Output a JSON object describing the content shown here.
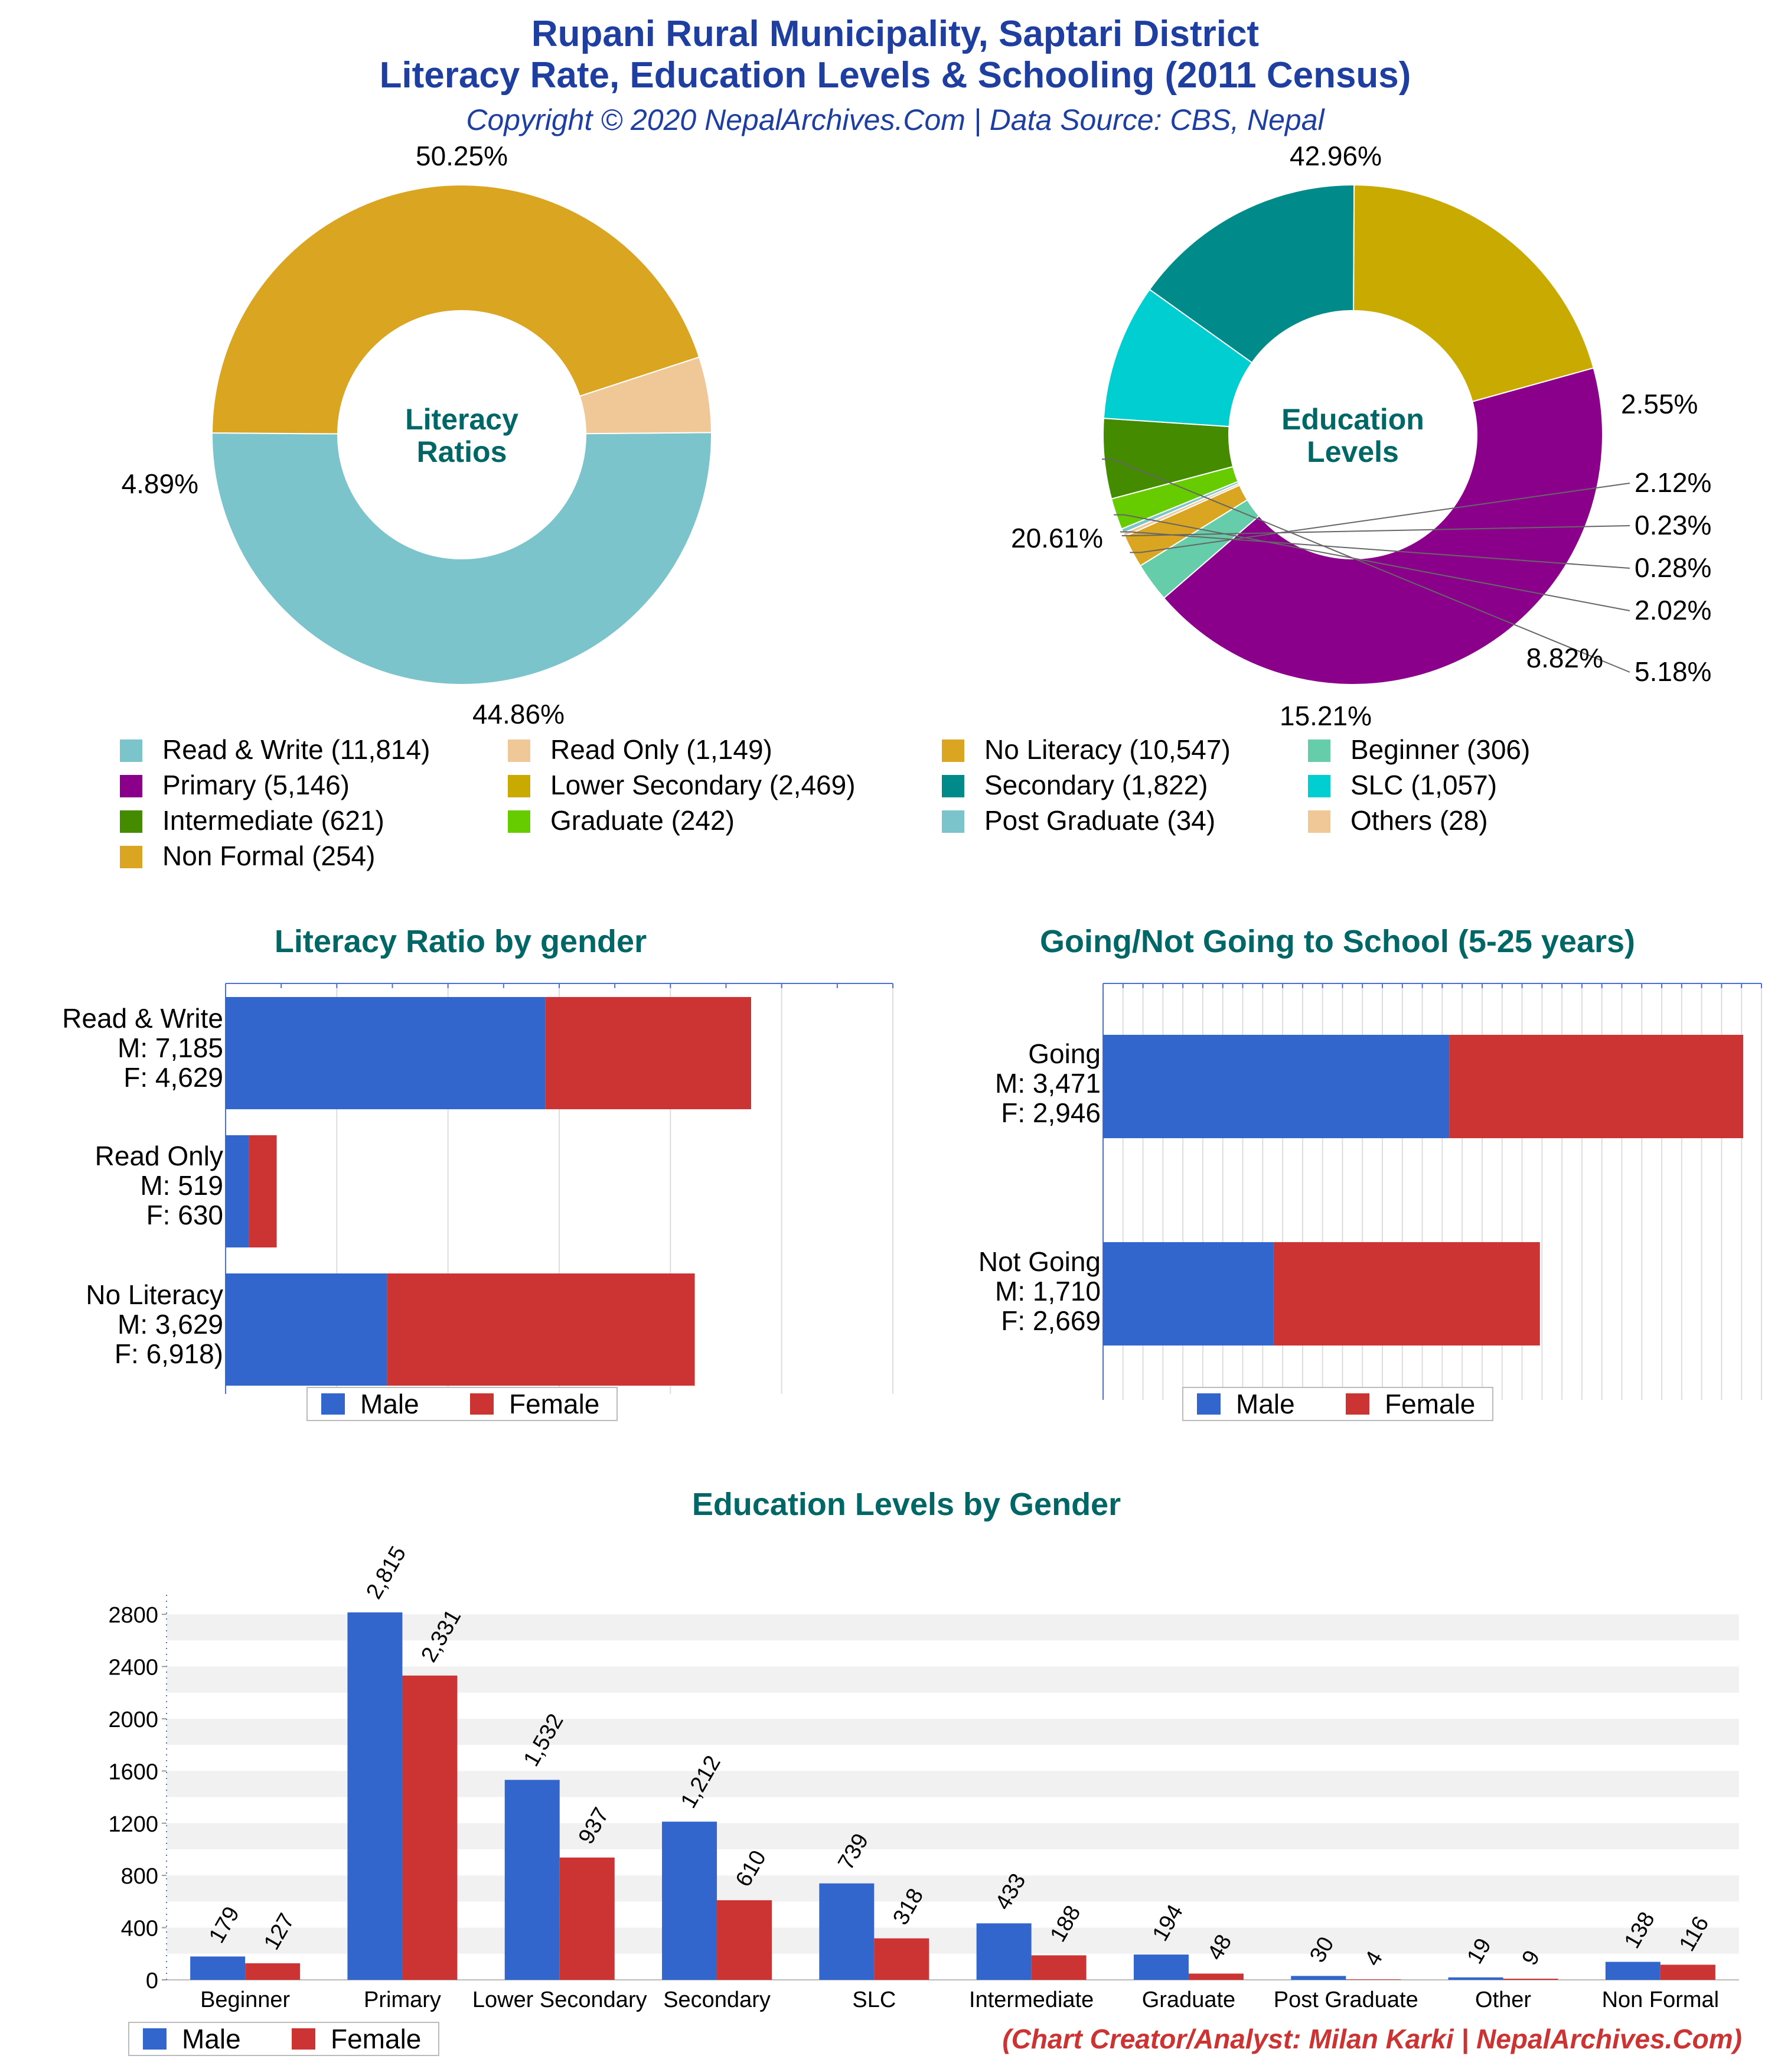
{
  "header": {
    "title_line1": "Rupani Rural Municipality, Saptari District",
    "title_line2": "Literacy Rate, Education Levels & Schooling (2011 Census)",
    "subtitle": "Copyright © 2020 NepalArchives.Com | Data Source: CBS, Nepal"
  },
  "colors": {
    "title": "#1f3fa0",
    "section_title": "#006666",
    "male": "#3366cc",
    "female": "#cc3333",
    "credit": "#cc3333"
  },
  "legend": {
    "male": "Male",
    "female": "Female",
    "items": [
      {
        "label": "Read & Write (11,814)",
        "color": "#7cc4cc"
      },
      {
        "label": "Read Only (1,149)",
        "color": "#f0c898"
      },
      {
        "label": "No Literacy (10,547)",
        "color": "#daa520"
      },
      {
        "label": "Beginner (306)",
        "color": "#66cdaa"
      },
      {
        "label": "Primary (5,146)",
        "color": "#8b008b"
      },
      {
        "label": "Lower Secondary (2,469)",
        "color": "#c8aa00"
      },
      {
        "label": "Secondary (1,822)",
        "color": "#008b8b"
      },
      {
        "label": "SLC (1,057)",
        "color": "#00ced1"
      },
      {
        "label": "Intermediate (621)",
        "color": "#458b00"
      },
      {
        "label": "Graduate (242)",
        "color": "#66cc00"
      },
      {
        "label": "Post Graduate (34)",
        "color": "#7cc4cc"
      },
      {
        "label": "Others (28)",
        "color": "#f0c898"
      },
      {
        "label": "Non Formal (254)",
        "color": "#daa520"
      }
    ]
  },
  "credit": "(Chart Creator/Analyst: Milan Karki | NepalArchives.Com)",
  "chart_data": [
    {
      "type": "pie",
      "center_label": [
        "Literacy",
        "Ratios"
      ],
      "slices": [
        {
          "name": "Read & Write",
          "value": 11814,
          "label": "50.25%",
          "color": "#7cc4cc"
        },
        {
          "name": "No Literacy",
          "value": 10547,
          "label": "44.86%",
          "color": "#daa520"
        },
        {
          "name": "Read Only",
          "value": 1149,
          "label": "4.89%",
          "color": "#f0c898"
        }
      ]
    },
    {
      "type": "pie",
      "center_label": [
        "Education",
        "Levels"
      ],
      "slices": [
        {
          "name": "Primary",
          "value": 5146,
          "label": "42.96%",
          "color": "#8b008b"
        },
        {
          "name": "Beginner",
          "value": 306,
          "label": "2.55%",
          "color": "#66cdaa"
        },
        {
          "name": "Non Formal",
          "value": 254,
          "label": "2.12%",
          "color": "#daa520"
        },
        {
          "name": "Others",
          "value": 28,
          "label": "0.23%",
          "color": "#f0c898"
        },
        {
          "name": "Post Graduate",
          "value": 34,
          "label": "0.28%",
          "color": "#7cc4cc"
        },
        {
          "name": "Graduate",
          "value": 242,
          "label": "2.02%",
          "color": "#66cc00"
        },
        {
          "name": "Intermediate",
          "value": 621,
          "label": "5.18%",
          "color": "#458b00"
        },
        {
          "name": "SLC",
          "value": 1057,
          "label": "8.82%",
          "color": "#00ced1"
        },
        {
          "name": "Secondary",
          "value": 1822,
          "label": "15.21%",
          "color": "#008b8b"
        },
        {
          "name": "Lower Secondary",
          "value": 2469,
          "label": "20.61%",
          "color": "#c8aa00"
        }
      ]
    },
    {
      "type": "bar",
      "orientation": "horizontal",
      "stacked": true,
      "title": "Literacy Ratio by gender",
      "categories": [
        {
          "lines": [
            "Read & Write",
            "M: 7,185",
            "F: 4,629"
          ]
        },
        {
          "lines": [
            "Read Only",
            "M: 519",
            "F: 630"
          ]
        },
        {
          "lines": [
            "No Literacy",
            "M: 3,629",
            "F: 6,918)"
          ]
        }
      ],
      "series": [
        {
          "name": "Male",
          "values": [
            7185,
            519,
            3629
          ]
        },
        {
          "name": "Female",
          "values": [
            4629,
            630,
            6918
          ]
        }
      ],
      "xlim": [
        0,
        15000
      ],
      "grid": true,
      "legend": "bottom"
    },
    {
      "type": "bar",
      "orientation": "horizontal",
      "stacked": true,
      "title": "Going/Not Going to School (5-25 years)",
      "categories": [
        {
          "lines": [
            "Going",
            "M: 3,471",
            "F: 2,946"
          ]
        },
        {
          "lines": [
            "Not Going",
            "M: 1,710",
            "F: 2,669"
          ]
        }
      ],
      "series": [
        {
          "name": "Male",
          "values": [
            3471,
            1710
          ]
        },
        {
          "name": "Female",
          "values": [
            2946,
            2669
          ]
        }
      ],
      "xlim": [
        0,
        6600
      ],
      "grid": true,
      "legend": "bottom"
    },
    {
      "type": "bar",
      "title": "Education Levels by Gender",
      "categories": [
        "Beginner",
        "Primary",
        "Lower Secondary",
        "Secondary",
        "SLC",
        "Intermediate",
        "Graduate",
        "Post Graduate",
        "Other",
        "Non Formal"
      ],
      "series": [
        {
          "name": "Male",
          "values": [
            179,
            2815,
            1532,
            1212,
            739,
            433,
            194,
            30,
            19,
            138
          ],
          "labels": [
            "179",
            "2,815",
            "1,532",
            "1,212",
            "739",
            "433",
            "194",
            "30",
            "19",
            "138"
          ]
        },
        {
          "name": "Female",
          "values": [
            127,
            2331,
            937,
            610,
            318,
            188,
            48,
            4,
            9,
            116
          ],
          "labels": [
            "127",
            "2,331",
            "937",
            "610",
            "318",
            "188",
            "48",
            "4",
            "9",
            "116"
          ]
        }
      ],
      "yticks": [
        "0",
        "400",
        "800",
        "1200",
        "1600",
        "2000",
        "2400",
        "2800"
      ],
      "ylim": [
        0,
        2950
      ],
      "grid": true,
      "legend": "bottom-left"
    }
  ]
}
